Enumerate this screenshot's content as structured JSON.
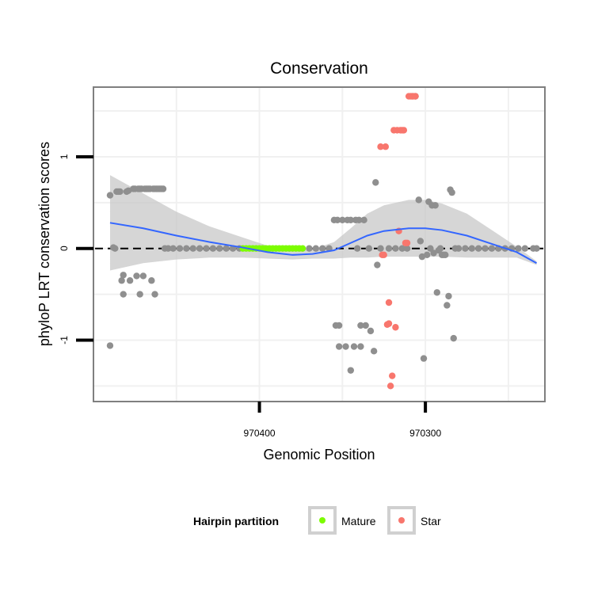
{
  "chart_data": {
    "type": "scatter",
    "title": "Conservation",
    "xlabel": "Genomic Position",
    "ylabel": "phyloP LRT conservation scores",
    "x_reversed": true,
    "xlim": [
      970500,
      970228
    ],
    "ylim": [
      -1.67,
      1.76
    ],
    "x_ticks": [
      970400,
      970300
    ],
    "x_tick_labels": [
      "970400",
      "970300"
    ],
    "y_ticks": [
      -1,
      0,
      1
    ],
    "y_tick_labels": [
      "-1",
      "0",
      "1"
    ],
    "grid": true,
    "reference_line": {
      "y": 0,
      "style": "dashed",
      "color": "#000000"
    },
    "colors": {
      "other": "#8f8f8f",
      "Mature": "#7cfc00",
      "Star": "#f8766d",
      "smooth": "#3366ff",
      "ribbon": "#c8c8c8",
      "panel_border": "#7f7f7f",
      "grid": "#f0f0f0"
    },
    "legend": {
      "title": "Hairpin partition",
      "position": "bottom",
      "entries": [
        {
          "label": "Mature",
          "color": "#7cfc00"
        },
        {
          "label": "Star",
          "color": "#f8766d"
        }
      ]
    },
    "series": [
      {
        "name": "Other",
        "points": [
          [
            970490,
            -1.06
          ],
          [
            970490,
            0.58
          ],
          [
            970488,
            0.01
          ],
          [
            970487,
            0.0
          ],
          [
            970486,
            0.62
          ],
          [
            970485,
            0.62
          ],
          [
            970484,
            0.62
          ],
          [
            970483,
            -0.35
          ],
          [
            970482,
            -0.29
          ],
          [
            970482,
            -0.5
          ],
          [
            970480,
            0.62
          ],
          [
            970479,
            0.63
          ],
          [
            970478,
            -0.35
          ],
          [
            970476,
            0.65
          ],
          [
            970475,
            0.65
          ],
          [
            970474,
            -0.3
          ],
          [
            970473,
            0.65
          ],
          [
            970472,
            -0.5
          ],
          [
            970472,
            0.65
          ],
          [
            970471,
            0.65
          ],
          [
            970470,
            -0.3
          ],
          [
            970469,
            0.65
          ],
          [
            970468,
            0.65
          ],
          [
            970467,
            0.65
          ],
          [
            970466,
            0.65
          ],
          [
            970465,
            -0.35
          ],
          [
            970464,
            0.65
          ],
          [
            970463,
            0.65
          ],
          [
            970463,
            -0.5
          ],
          [
            970462,
            0.65
          ],
          [
            970461,
            0.65
          ],
          [
            970460,
            0.65
          ],
          [
            970459,
            0.65
          ],
          [
            970458,
            0.65
          ],
          [
            970457,
            0.0
          ],
          [
            970455,
            0.0
          ],
          [
            970452,
            0.0
          ],
          [
            970448,
            0.0
          ],
          [
            970444,
            0.0
          ],
          [
            970440,
            0.0
          ],
          [
            970436,
            0.0
          ],
          [
            970432,
            0.0
          ],
          [
            970428,
            0.0
          ],
          [
            970424,
            0.0
          ],
          [
            970420,
            0.0
          ],
          [
            970416,
            0.0
          ],
          [
            970412,
            0.0
          ],
          [
            970370,
            0.0
          ],
          [
            970366,
            0.0
          ],
          [
            970362,
            0.0
          ],
          [
            970358,
            0.0
          ],
          [
            970355,
            0.31
          ],
          [
            970354,
            -0.84
          ],
          [
            970353,
            0.31
          ],
          [
            970352,
            -1.07
          ],
          [
            970352,
            -0.84
          ],
          [
            970350,
            0.31
          ],
          [
            970348,
            -1.07
          ],
          [
            970347,
            0.31
          ],
          [
            970345,
            -1.33
          ],
          [
            970345,
            0.31
          ],
          [
            970343,
            -1.07
          ],
          [
            970342,
            0.31
          ],
          [
            970341,
            0.0
          ],
          [
            970340,
            0.31
          ],
          [
            970339,
            -0.84
          ],
          [
            970339,
            -1.07
          ],
          [
            970337,
            0.31
          ],
          [
            970336,
            -0.84
          ],
          [
            970334,
            0.0
          ],
          [
            970333,
            -0.9
          ],
          [
            970331,
            -1.12
          ],
          [
            970330,
            0.72
          ],
          [
            970329,
            -0.18
          ],
          [
            970327,
            0.0
          ],
          [
            970322,
            0.0
          ],
          [
            970318,
            0.0
          ],
          [
            970314,
            0.0
          ],
          [
            970311,
            0.0
          ],
          [
            970308,
            1.66
          ],
          [
            970306,
            1.66
          ],
          [
            970304,
            0.53
          ],
          [
            970303,
            0.08
          ],
          [
            970302,
            -0.09
          ],
          [
            970301,
            -1.2
          ],
          [
            970299,
            -0.07
          ],
          [
            970298,
            0.51
          ],
          [
            970297,
            0.0
          ],
          [
            970296,
            0.47
          ],
          [
            970295,
            -0.05
          ],
          [
            970294,
            0.47
          ],
          [
            970293,
            -0.48
          ],
          [
            970292,
            -0.02
          ],
          [
            970291,
            0.0
          ],
          [
            970290,
            -0.07
          ],
          [
            970289,
            -0.07
          ],
          [
            970288,
            -0.07
          ],
          [
            970287,
            -0.62
          ],
          [
            970286,
            -0.52
          ],
          [
            970285,
            0.64
          ],
          [
            970284,
            0.61
          ],
          [
            970283,
            -0.98
          ],
          [
            970282,
            0.0
          ],
          [
            970280,
            0.0
          ],
          [
            970276,
            0.0
          ],
          [
            970272,
            0.0
          ],
          [
            970268,
            0.0
          ],
          [
            970264,
            0.0
          ],
          [
            970260,
            0.0
          ],
          [
            970256,
            0.0
          ],
          [
            970252,
            0.0
          ],
          [
            970248,
            0.0
          ],
          [
            970244,
            0.0
          ],
          [
            970240,
            0.0
          ],
          [
            970235,
            0.0
          ],
          [
            970233,
            0.0
          ]
        ]
      },
      {
        "name": "Mature",
        "points": [
          [
            970410,
            0.0
          ],
          [
            970408,
            0.0
          ],
          [
            970406,
            0.0
          ],
          [
            970404,
            0.0
          ],
          [
            970402,
            0.0
          ],
          [
            970400,
            0.0
          ],
          [
            970398,
            0.0
          ],
          [
            970396,
            0.0
          ],
          [
            970394,
            0.0
          ],
          [
            970392,
            0.0
          ],
          [
            970390,
            0.0
          ],
          [
            970388,
            0.0
          ],
          [
            970386,
            0.0
          ],
          [
            970384,
            0.0
          ],
          [
            970382,
            0.0
          ],
          [
            970380,
            0.0
          ],
          [
            970378,
            0.0
          ],
          [
            970376,
            0.0
          ],
          [
            970374,
            0.0
          ]
        ]
      },
      {
        "name": "Star",
        "points": [
          [
            970327,
            1.11
          ],
          [
            970326,
            -0.07
          ],
          [
            970325,
            -0.07
          ],
          [
            970324,
            1.11
          ],
          [
            970323,
            -0.83
          ],
          [
            970322,
            -0.59
          ],
          [
            970322,
            -0.82
          ],
          [
            970321,
            -1.5
          ],
          [
            970320,
            -1.39
          ],
          [
            970319,
            1.29
          ],
          [
            970318,
            -0.86
          ],
          [
            970317,
            1.29
          ],
          [
            970316,
            0.19
          ],
          [
            970315,
            1.29
          ],
          [
            970314,
            1.29
          ],
          [
            970313,
            1.29
          ],
          [
            970312,
            0.06
          ],
          [
            970311,
            0.06
          ],
          [
            970310,
            1.66
          ],
          [
            970309,
            1.66
          ],
          [
            970308,
            1.66
          ],
          [
            970307,
            1.66
          ],
          [
            970306,
            1.66
          ]
        ]
      }
    ],
    "smooth": {
      "method": "loess",
      "x": [
        970490,
        970470,
        970450,
        970430,
        970410,
        970395,
        970380,
        970368,
        970355,
        970345,
        970335,
        970325,
        970310,
        970300,
        970290,
        970275,
        970260,
        970245,
        970233
      ],
      "y": [
        0.28,
        0.22,
        0.14,
        0.07,
        0.01,
        -0.04,
        -0.07,
        -0.06,
        -0.02,
        0.06,
        0.14,
        0.19,
        0.22,
        0.22,
        0.2,
        0.14,
        0.05,
        -0.04,
        -0.16
      ],
      "lower": [
        0.52,
        0.38,
        0.26,
        0.17,
        0.11,
        0.07,
        0.05,
        0.05,
        0.09,
        0.16,
        0.24,
        0.28,
        0.31,
        0.31,
        0.29,
        0.24,
        0.15,
        0.06,
        0.02
      ],
      "upper": [
        0.52,
        0.38,
        0.26,
        0.17,
        0.11,
        0.07,
        0.05,
        0.05,
        0.09,
        0.16,
        0.24,
        0.28,
        0.31,
        0.31,
        0.29,
        0.24,
        0.15,
        0.06,
        0.02
      ]
    }
  }
}
